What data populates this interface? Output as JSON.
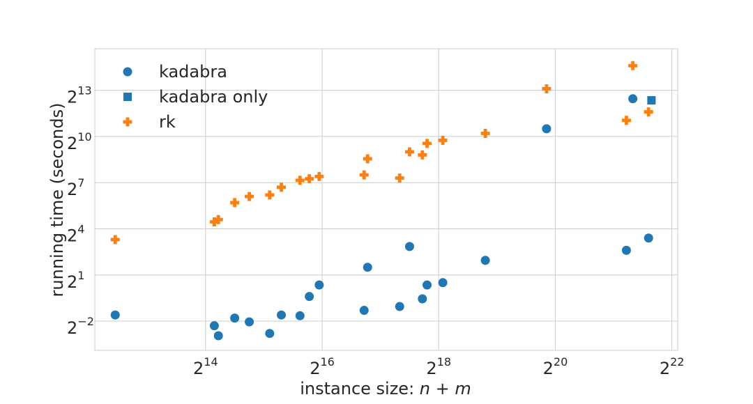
{
  "chart_data": {
    "type": "scatter",
    "title": "",
    "xlabel_text": "instance size: ",
    "xlabel_math": "n + m",
    "ylabel": "running time (seconds)",
    "xscale": "log2",
    "yscale": "log2",
    "xlim_log2": [
      12.1,
      22.1
    ],
    "ylim_log2": [
      -3.9,
      15.7
    ],
    "xticks": [
      {
        "base": "2",
        "exp": "14",
        "v": 14
      },
      {
        "base": "2",
        "exp": "16",
        "v": 16
      },
      {
        "base": "2",
        "exp": "18",
        "v": 18
      },
      {
        "base": "2",
        "exp": "20",
        "v": 20
      },
      {
        "base": "2",
        "exp": "22",
        "v": 22
      }
    ],
    "yticks": [
      {
        "base": "2",
        "exp": "−2",
        "v": -2
      },
      {
        "base": "2",
        "exp": "1",
        "v": 1
      },
      {
        "base": "2",
        "exp": "4",
        "v": 4
      },
      {
        "base": "2",
        "exp": "7",
        "v": 7
      },
      {
        "base": "2",
        "exp": "10",
        "v": 10
      },
      {
        "base": "2",
        "exp": "13",
        "v": 13
      }
    ],
    "grid": true,
    "legend_position": "top-left",
    "colors": {
      "blue": "#1f77b4",
      "orange": "#ff7f0e",
      "grid": "#cccccc",
      "frame": "#cccccc"
    },
    "series": [
      {
        "name": "kadabra",
        "marker": "circle",
        "color": "#1f77b4",
        "points_log2": [
          [
            12.45,
            -1.6
          ],
          [
            14.15,
            -2.3
          ],
          [
            14.22,
            -2.95
          ],
          [
            14.5,
            -1.8
          ],
          [
            14.75,
            -2.05
          ],
          [
            15.1,
            -2.8
          ],
          [
            15.3,
            -1.6
          ],
          [
            15.62,
            -1.65
          ],
          [
            15.78,
            -0.4
          ],
          [
            15.95,
            0.35
          ],
          [
            16.72,
            -1.3
          ],
          [
            16.78,
            1.5
          ],
          [
            17.33,
            -1.05
          ],
          [
            17.5,
            2.85
          ],
          [
            17.72,
            -0.55
          ],
          [
            17.8,
            0.35
          ],
          [
            18.07,
            0.5
          ],
          [
            18.8,
            1.95
          ],
          [
            19.85,
            10.5
          ],
          [
            21.22,
            2.6
          ],
          [
            21.33,
            12.45
          ],
          [
            21.6,
            3.4
          ]
        ]
      },
      {
        "name": "kadabra only",
        "marker": "square",
        "color": "#1f77b4",
        "points_log2": [
          [
            21.65,
            12.35
          ]
        ]
      },
      {
        "name": "rk",
        "marker": "plus",
        "color": "#ff7f0e",
        "points_log2": [
          [
            12.45,
            3.3
          ],
          [
            14.15,
            4.45
          ],
          [
            14.22,
            4.6
          ],
          [
            14.5,
            5.7
          ],
          [
            14.75,
            6.1
          ],
          [
            15.1,
            6.2
          ],
          [
            15.3,
            6.7
          ],
          [
            15.62,
            7.15
          ],
          [
            15.78,
            7.25
          ],
          [
            15.95,
            7.4
          ],
          [
            16.72,
            7.5
          ],
          [
            16.78,
            8.55
          ],
          [
            17.33,
            7.3
          ],
          [
            17.5,
            9.0
          ],
          [
            17.72,
            8.8
          ],
          [
            17.8,
            9.55
          ],
          [
            18.07,
            9.75
          ],
          [
            18.8,
            10.2
          ],
          [
            19.85,
            13.1
          ],
          [
            21.22,
            11.05
          ],
          [
            21.33,
            14.6
          ],
          [
            21.6,
            11.6
          ]
        ]
      }
    ]
  }
}
